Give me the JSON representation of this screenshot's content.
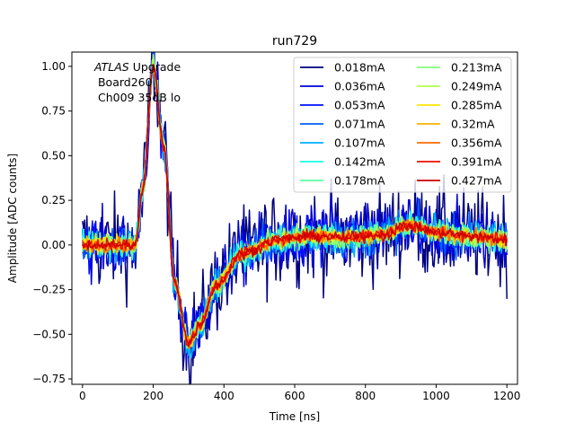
{
  "chart_data": {
    "type": "line",
    "title": "run729",
    "xlabel": "Time [ns]",
    "ylabel": "Amplitude [ADC counts]",
    "xlim": [
      -30,
      1230
    ],
    "ylim": [
      -0.78,
      1.08
    ],
    "xticks": [
      0,
      200,
      400,
      600,
      800,
      1000,
      1200
    ],
    "xtick_labels": [
      "0",
      "200",
      "400",
      "600",
      "800",
      "1000",
      "1200"
    ],
    "yticks": [
      -0.75,
      -0.5,
      -0.25,
      0.0,
      0.25,
      0.5,
      0.75,
      1.0
    ],
    "ytick_labels": [
      "−0.75",
      "−0.50",
      "−0.25",
      "0.00",
      "0.25",
      "0.50",
      "0.75",
      "1.00"
    ],
    "grid": false,
    "legend_position": "top-right",
    "legend_columns": 2,
    "annotation": {
      "line1_italic": "ATLAS",
      "line1_rest": " Upgrade",
      "line2": " Board260",
      "line3": " Ch009 35dB lo"
    },
    "pulse_shape": {
      "x": [
        0,
        150,
        170,
        200,
        230,
        260,
        300,
        330,
        380,
        450,
        550,
        650,
        750,
        850,
        920,
        1000,
        1100,
        1200
      ],
      "y": [
        0.0,
        0.0,
        0.3,
        1.0,
        0.55,
        -0.2,
        -0.55,
        -0.45,
        -0.22,
        -0.05,
        0.03,
        0.05,
        0.04,
        0.06,
        0.11,
        0.07,
        0.05,
        0.03
      ]
    },
    "series": [
      {
        "name": "0.018mA",
        "color": "#00007f",
        "noise": 0.19
      },
      {
        "name": "0.036mA",
        "color": "#0000d4",
        "noise": 0.13
      },
      {
        "name": "0.053mA",
        "color": "#0010ff",
        "noise": 0.1
      },
      {
        "name": "0.071mA",
        "color": "#0060ff",
        "noise": 0.08
      },
      {
        "name": "0.107mA",
        "color": "#00b0ff",
        "noise": 0.065
      },
      {
        "name": "0.142mA",
        "color": "#1affe4",
        "noise": 0.055
      },
      {
        "name": "0.178mA",
        "color": "#5bffa3",
        "noise": 0.048
      },
      {
        "name": "0.213mA",
        "color": "#82ff7c",
        "noise": 0.042
      },
      {
        "name": "0.249mA",
        "color": "#b3ff4b",
        "noise": 0.038
      },
      {
        "name": "0.285mA",
        "color": "#ffe600",
        "noise": 0.034
      },
      {
        "name": "0.32mA",
        "color": "#ffb300",
        "noise": 0.03
      },
      {
        "name": "0.356mA",
        "color": "#ff6c00",
        "noise": 0.027
      },
      {
        "name": "0.391mA",
        "color": "#f20e00",
        "noise": 0.024
      },
      {
        "name": "0.427mA",
        "color": "#cc0000",
        "noise": 0.022
      }
    ]
  }
}
